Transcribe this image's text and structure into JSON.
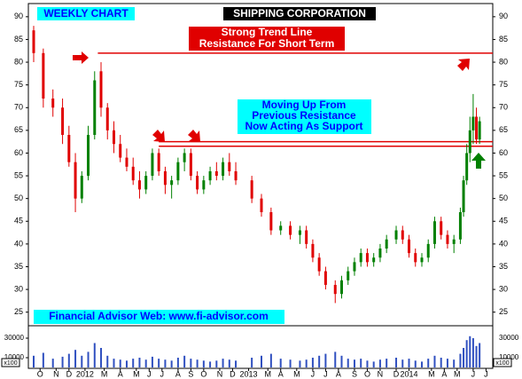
{
  "chart_data": {
    "type": "candlestick",
    "title": "SHIPPING CORPORATION",
    "subtitle": "WEEKLY CHART",
    "footer": "Financial Advisor Web: www.fi-advisor.com",
    "volume_unit": "x100",
    "annotations": {
      "resistance": [
        "Strong Trend Line",
        "Resistance For Short Term"
      ],
      "support": [
        "Moving Up From",
        "Previous Resistance",
        "Now Acting As Support"
      ]
    },
    "up_color": "#008000",
    "down_color": "#e00000",
    "volume_color": "#3050c0",
    "level_color": "#e00000",
    "xlim": [
      0,
      142
    ],
    "xticks": [
      {
        "value": 2,
        "label": "O"
      },
      {
        "value": 7,
        "label": "N"
      },
      {
        "value": 11,
        "label": "D"
      },
      {
        "value": 16,
        "label": "2012"
      },
      {
        "value": 22,
        "label": "M"
      },
      {
        "value": 27,
        "label": "A"
      },
      {
        "value": 32,
        "label": "M"
      },
      {
        "value": 36,
        "label": "J"
      },
      {
        "value": 40,
        "label": "J"
      },
      {
        "value": 45,
        "label": "A"
      },
      {
        "value": 49,
        "label": "S"
      },
      {
        "value": 53,
        "label": "O"
      },
      {
        "value": 58,
        "label": "N"
      },
      {
        "value": 62,
        "label": "D"
      },
      {
        "value": 67,
        "label": "2013"
      },
      {
        "value": 73,
        "label": "M"
      },
      {
        "value": 77,
        "label": "A"
      },
      {
        "value": 82,
        "label": "M"
      },
      {
        "value": 87,
        "label": "J"
      },
      {
        "value": 91,
        "label": "J"
      },
      {
        "value": 95,
        "label": "A"
      },
      {
        "value": 100,
        "label": "S"
      },
      {
        "value": 104,
        "label": "O"
      },
      {
        "value": 108,
        "label": "N"
      },
      {
        "value": 113,
        "label": "D"
      },
      {
        "value": 117,
        "label": "2014"
      },
      {
        "value": 124,
        "label": "M"
      },
      {
        "value": 128,
        "label": "A"
      },
      {
        "value": 132,
        "label": "M"
      },
      {
        "value": 137,
        "label": "J"
      },
      {
        "value": 141,
        "label": "J"
      }
    ],
    "ylim": [
      22.4,
      92.9
    ],
    "yticks": [
      25,
      30,
      35,
      40,
      45,
      50,
      55,
      60,
      65,
      70,
      75,
      80,
      85,
      90
    ],
    "vlim": [
      0,
      40000
    ],
    "vticks": [
      10000,
      30000
    ],
    "levels": [
      {
        "value": 82,
        "start": 20
      },
      {
        "value": 62.5,
        "start": 39
      },
      {
        "value": 61.5,
        "start": 39
      }
    ],
    "x": [
      0,
      3,
      6,
      9,
      11,
      13,
      15,
      17,
      19,
      21,
      23,
      25,
      27,
      29,
      31,
      33,
      35,
      37,
      39,
      41,
      43,
      45,
      47,
      49,
      51,
      53,
      55,
      57,
      59,
      61,
      63,
      68,
      71,
      74,
      77,
      80,
      83,
      85,
      87,
      89,
      91,
      94,
      96,
      98,
      100,
      102,
      104,
      106,
      108,
      110,
      113,
      115,
      117,
      119,
      121,
      123,
      125,
      127,
      129,
      131,
      133,
      134,
      135,
      136,
      137,
      138,
      139
    ],
    "open": [
      87,
      82,
      72,
      70,
      64,
      58,
      50,
      55,
      64,
      78,
      70,
      65,
      62,
      59,
      57,
      54,
      52,
      55,
      60,
      56,
      53,
      54,
      58,
      60,
      55,
      52,
      54,
      56,
      55,
      58,
      56,
      54,
      50,
      47,
      43,
      44,
      42,
      43,
      40,
      37,
      34,
      31,
      29,
      32,
      34,
      36,
      38,
      36,
      37,
      39,
      41,
      43,
      41,
      38,
      36,
      37,
      40,
      45,
      42,
      40,
      41,
      47,
      54,
      60,
      65,
      68,
      63
    ],
    "high": [
      88,
      83,
      74,
      72,
      66,
      60,
      56,
      66,
      78,
      80,
      71,
      67,
      64,
      61,
      59,
      56,
      56,
      61,
      61,
      57,
      55,
      59,
      61,
      61,
      56,
      55,
      57,
      58,
      59,
      60,
      58,
      55,
      51,
      48,
      45,
      45,
      44,
      44,
      41,
      38,
      35,
      32,
      33,
      35,
      37,
      39,
      39,
      38,
      40,
      42,
      44,
      44,
      42,
      39,
      38,
      41,
      46,
      46,
      43,
      42,
      48,
      55,
      62,
      68,
      73,
      70,
      68
    ],
    "low": [
      80,
      70,
      68,
      62,
      57,
      47,
      49,
      54,
      63,
      68,
      63,
      60,
      58,
      56,
      53,
      50,
      51,
      54,
      55,
      51,
      50,
      53,
      56,
      54,
      51,
      51,
      53,
      54,
      54,
      55,
      53,
      49,
      46,
      42,
      42,
      41,
      40,
      39,
      36,
      33,
      30,
      27,
      28,
      31,
      33,
      35,
      35,
      35,
      36,
      38,
      40,
      40,
      37,
      35,
      35,
      36,
      39,
      41,
      39,
      38,
      40,
      46,
      53,
      58,
      62,
      62,
      62
    ],
    "close": [
      82,
      72,
      70,
      64,
      58,
      50,
      55,
      64,
      76,
      70,
      65,
      62,
      59,
      57,
      54,
      52,
      55,
      60,
      56,
      53,
      54,
      58,
      60,
      55,
      52,
      54,
      56,
      55,
      58,
      56,
      54,
      50,
      47,
      43,
      44,
      42,
      43,
      40,
      37,
      34,
      31,
      29,
      32,
      34,
      36,
      38,
      36,
      37,
      39,
      41,
      43,
      41,
      38,
      36,
      37,
      40,
      45,
      42,
      40,
      41,
      47,
      54,
      60,
      65,
      68,
      63,
      67
    ],
    "volume": [
      12000,
      15000,
      9000,
      11000,
      14000,
      18000,
      12000,
      16000,
      25000,
      20000,
      12000,
      9000,
      8000,
      7000,
      9000,
      10000,
      8000,
      11000,
      9000,
      8000,
      7000,
      10000,
      12000,
      9000,
      8000,
      7000,
      6000,
      7000,
      9000,
      8000,
      7000,
      10000,
      12000,
      14000,
      9000,
      8000,
      7000,
      8000,
      10000,
      12000,
      14000,
      16000,
      12000,
      9000,
      8000,
      9000,
      7000,
      6000,
      8000,
      9000,
      10000,
      8000,
      9000,
      7000,
      6000,
      9000,
      12000,
      10000,
      9000,
      8000,
      14000,
      20000,
      28000,
      32000,
      30000,
      22000,
      25000
    ]
  }
}
